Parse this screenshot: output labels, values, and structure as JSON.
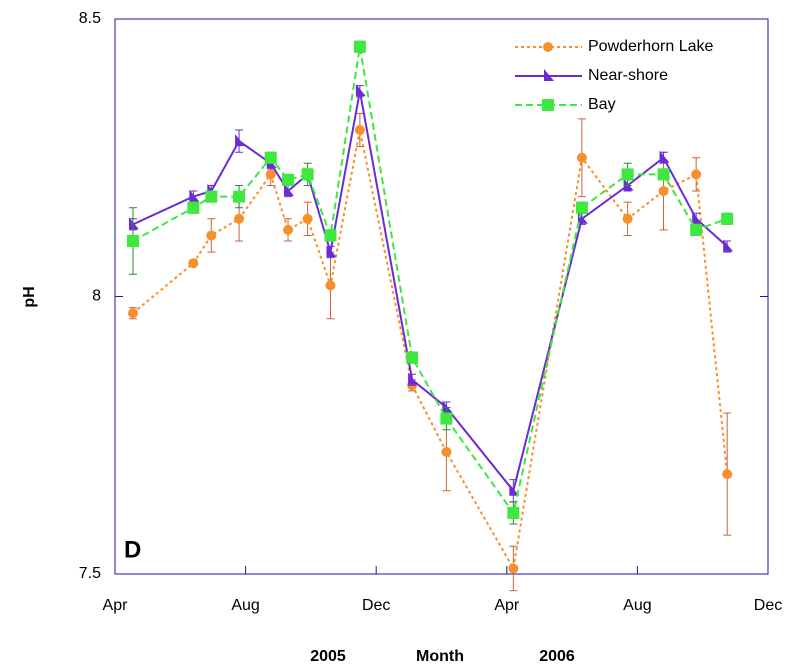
{
  "chart_data": {
    "type": "line",
    "y_label": "pH",
    "x_label": "Month",
    "year_labels": [
      "2005",
      "2006"
    ],
    "panel_label": "D",
    "x": [
      0.55,
      2.4,
      2.95,
      3.8,
      4.77,
      5.3,
      5.9,
      6.6,
      7.5,
      9.1,
      10.15,
      12.2,
      14.3,
      15.7,
      16.8,
      17.8,
      18.75
    ],
    "xlim": [
      0,
      20
    ],
    "xticks": [
      {
        "value": 0,
        "label": "Apr"
      },
      {
        "value": 4,
        "label": "Aug"
      },
      {
        "value": 8,
        "label": "Dec"
      },
      {
        "value": 12,
        "label": "Apr"
      },
      {
        "value": 16,
        "label": "Aug"
      },
      {
        "value": 20,
        "label": "Dec"
      }
    ],
    "ylim": [
      7.5,
      8.5
    ],
    "yticks": [
      7.5,
      8,
      8.5
    ],
    "legend": "upper right",
    "series": [
      {
        "name": "Powderhorn Lake",
        "color": "#f7902c",
        "error_color": "#c8643c",
        "marker": "circle",
        "dash": "3,3",
        "values": [
          7.97,
          8.06,
          8.11,
          8.14,
          8.22,
          8.12,
          8.14,
          8.02,
          8.3,
          7.84,
          7.72,
          7.51,
          8.25,
          8.14,
          8.19,
          8.22,
          7.68
        ],
        "errors": [
          0.01,
          0.005,
          0.03,
          0.04,
          0.02,
          0.02,
          0.03,
          0.06,
          0.03,
          0.01,
          0.07,
          0.04,
          0.07,
          0.03,
          0.07,
          0.03,
          0.11
        ]
      },
      {
        "name": "Near-shore",
        "color": "#6a2bd4",
        "error_color": "#6a2bd4",
        "marker": "triangle",
        "dash": "",
        "values": [
          8.13,
          8.18,
          8.19,
          8.28,
          8.24,
          8.19,
          8.22,
          8.08,
          8.37,
          7.85,
          7.8,
          7.65,
          8.14,
          8.2,
          8.25,
          8.14,
          8.09
        ],
        "errors": [
          0.01,
          0.01,
          0.01,
          0.02,
          0.01,
          0.01,
          0.01,
          0.01,
          0.01,
          0.01,
          0.01,
          0.02,
          0.01,
          0.01,
          0.01,
          0.01,
          0.01
        ]
      },
      {
        "name": "Bay",
        "color": "#3ee83e",
        "error_color": "#2a8a2a",
        "marker": "square",
        "dash": "7,4",
        "values": [
          8.1,
          8.16,
          8.18,
          8.18,
          8.25,
          8.21,
          8.22,
          8.11,
          8.45,
          7.89,
          7.78,
          7.61,
          8.16,
          8.22,
          8.22,
          8.12,
          8.14
        ],
        "errors": [
          0.06,
          0.01,
          0.01,
          0.02,
          0.01,
          0.01,
          0.02,
          0.01,
          0.01,
          0.01,
          0.02,
          0.02,
          0.01,
          0.02,
          0.01,
          0.01,
          0.01
        ]
      }
    ]
  }
}
